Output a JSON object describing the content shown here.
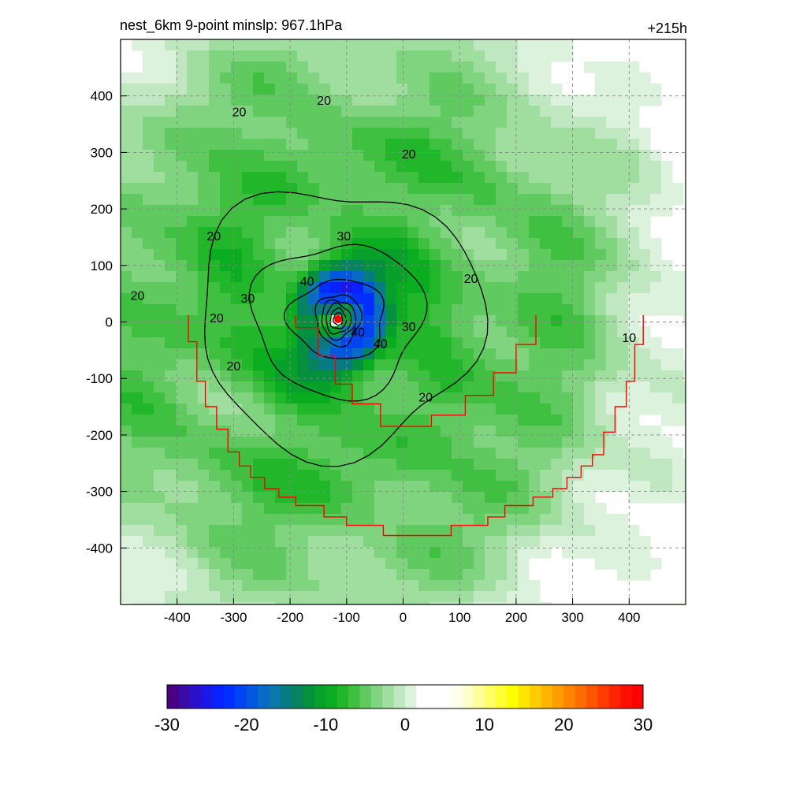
{
  "header": {
    "left_title": "nest_6km  9-point minslp: 967.1hPa",
    "right_title": "+215h"
  },
  "chart_data": {
    "type": "heatmap",
    "xlim": [
      -500,
      500
    ],
    "ylim": [
      -500,
      500
    ],
    "x_ticks": [
      -400,
      -300,
      -200,
      -100,
      0,
      100,
      200,
      300,
      400
    ],
    "y_ticks": [
      -400,
      -300,
      -200,
      -100,
      0,
      100,
      200,
      300,
      400
    ],
    "x_tick_labels": [
      "-400",
      "-300",
      "-200",
      "-100",
      "0",
      "100",
      "200",
      "300",
      "400"
    ],
    "y_tick_labels": [
      "-400",
      "-300",
      "-200",
      "-100",
      "0",
      "100",
      "200",
      "300",
      "400"
    ],
    "grid": true,
    "storm_center": {
      "x": -115,
      "y": 5,
      "color": "#ff0000"
    },
    "contour_labels": [
      {
        "text": "20",
        "x": -290,
        "y": 370
      },
      {
        "text": "20",
        "x": 10,
        "y": 295
      },
      {
        "text": "20",
        "x": -335,
        "y": 150
      },
      {
        "text": "20",
        "x": 120,
        "y": 75
      },
      {
        "text": "20",
        "x": -470,
        "y": 45
      },
      {
        "text": "20",
        "x": -330,
        "y": 5
      },
      {
        "text": "20",
        "x": -300,
        "y": -80
      },
      {
        "text": "20",
        "x": 40,
        "y": -135
      },
      {
        "text": "20",
        "x": -140,
        "y": 390
      },
      {
        "text": "30",
        "x": -105,
        "y": 150
      },
      {
        "text": "30",
        "x": -275,
        "y": 40
      },
      {
        "text": "30",
        "x": 10,
        "y": -10
      },
      {
        "text": "40",
        "x": -170,
        "y": 70
      },
      {
        "text": "40",
        "x": -80,
        "y": -20
      },
      {
        "text": "40",
        "x": -40,
        "y": -40
      },
      {
        "text": "10",
        "x": 400,
        "y": -30
      }
    ],
    "boundary_color": "#ff0000",
    "colorbar": {
      "min": -30,
      "max": 30,
      "tick_values": [
        -30,
        -20,
        -10,
        0,
        10,
        20,
        30
      ],
      "tick_labels": [
        "-30",
        "-20",
        "-10",
        "0",
        "10",
        "20",
        "30"
      ]
    }
  },
  "colors": {
    "palette": [
      "#4b0082",
      "#3a0aa6",
      "#2a10c8",
      "#1a18e6",
      "#0a20ff",
      "#0030ff",
      "#0044f2",
      "#0058e0",
      "#0a6ac8",
      "#0a78a8",
      "#087a82",
      "#068460",
      "#059040",
      "#06a02a",
      "#0aac20",
      "#22b62a",
      "#40c040",
      "#60ca60",
      "#80d480",
      "#a0dea0",
      "#c0e8c0",
      "#dcf2dc",
      "#ffffff",
      "#ffffff",
      "#ffffff",
      "#fffff0",
      "#ffffcc",
      "#ffff99",
      "#ffff66",
      "#ffff33",
      "#ffff00",
      "#ffe600",
      "#ffcc00",
      "#ffb400",
      "#ff9c00",
      "#ff8400",
      "#ff6c00",
      "#ff5400",
      "#ff3c00",
      "#ff2400",
      "#ff1000",
      "#ff0000"
    ]
  }
}
